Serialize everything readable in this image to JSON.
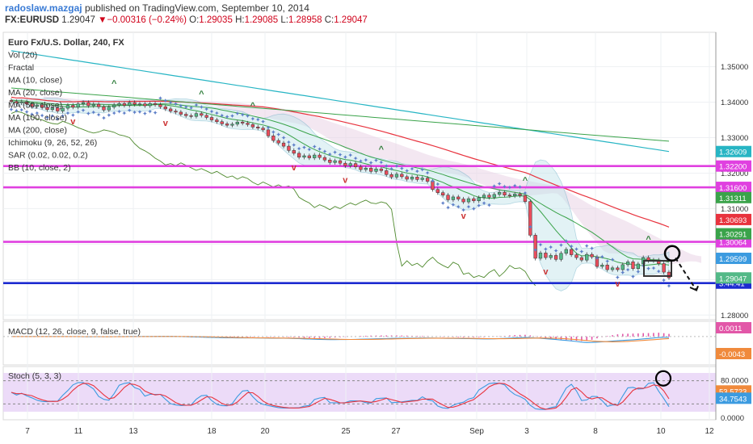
{
  "header": {
    "author": "radoslaw.mazgaj",
    "published_prefix": "published on TradingView.com,",
    "published_date": "September 10, 2014",
    "symbol": "FX:EURUSD",
    "last": "1.29047",
    "change_arrow": "▼",
    "change": "−0.00316 (−0.24%)",
    "open_label": "O:",
    "open": "1.29035",
    "high_label": "H:",
    "high": "1.29085",
    "low_label": "L:",
    "low": "1.28958",
    "close_label": "C:",
    "close": "1.29047"
  },
  "colors": {
    "up_candle": "#53b987",
    "down_candle": "#eb4d5c",
    "magenta_level": "#e040e0",
    "blue_level": "#1c2bd0",
    "sar": "#5e7fc8",
    "ma_red": "#e8333e",
    "ma_green": "#3aa34a",
    "ma_teal": "#27b5c4",
    "stoch_bg": "#e6cff5",
    "macd_line": "#3c9be0",
    "signal_line": "#f08a3c",
    "hist": "#e257a8",
    "annotation": "#000000"
  },
  "legend": [
    "Euro Fx/U.S. Dollar, 240, FX",
    "Vol (20)",
    "Fractal",
    "MA (10, close)",
    "MA (20, close)",
    "MA (50, close)",
    "MA (100, close)",
    "MA (200, close)",
    "Ichimoku (9, 26, 52, 26)",
    "SAR (0.02, 0.02, 0.2)",
    "BB (10, close, 2)"
  ],
  "chart_data": [
    {
      "type": "line",
      "symbol": "EURUSD",
      "interval": "240",
      "x_tick_labels": [
        "7",
        "11",
        "13",
        "18",
        "20",
        "25",
        "27",
        "Sep",
        "3",
        "8",
        "10",
        "12"
      ],
      "y_tick_labels": [
        "1.35000",
        "1.34000",
        "1.33000",
        "1.32000",
        "1.31000",
        "1.30000",
        "1.29000",
        "1.28000"
      ],
      "ylim": [
        1.2787,
        1.3597
      ],
      "price_path": [
        1.3402,
        1.3398,
        1.3401,
        1.3395,
        1.3388,
        1.3392,
        1.3385,
        1.3379,
        1.3384,
        1.3375,
        1.3383,
        1.3391,
        1.3386,
        1.3395,
        1.3399,
        1.339,
        1.3394,
        1.3387,
        1.3378,
        1.3386,
        1.3392,
        1.3396,
        1.3391,
        1.3399,
        1.3394,
        1.3395,
        1.339,
        1.3396,
        1.3393,
        1.3387,
        1.3381,
        1.3375,
        1.3372,
        1.3366,
        1.3362,
        1.336,
        1.3368,
        1.3363,
        1.3357,
        1.335,
        1.3345,
        1.3339,
        1.3335,
        1.3338,
        1.3344,
        1.3341,
        1.3337,
        1.333,
        1.3327,
        1.3322,
        1.3305,
        1.3292,
        1.3285,
        1.3276,
        1.3264,
        1.3256,
        1.3245,
        1.3249,
        1.3243,
        1.3251,
        1.3244,
        1.3237,
        1.323,
        1.3235,
        1.3228,
        1.3221,
        1.3227,
        1.3218,
        1.321,
        1.3214,
        1.3205,
        1.3212,
        1.3207,
        1.3196,
        1.3189,
        1.3197,
        1.319,
        1.3183,
        1.3189,
        1.3182,
        1.3186,
        1.3177,
        1.3154,
        1.3145,
        1.3138,
        1.3125,
        1.3133,
        1.3127,
        1.3119,
        1.3128,
        1.3122,
        1.3131,
        1.3138,
        1.3132,
        1.314,
        1.3146,
        1.3138,
        1.3136,
        1.3141,
        1.3137,
        1.312,
        1.3025,
        1.296,
        1.2975,
        1.2962,
        1.2968,
        1.2957,
        1.2974,
        1.2985,
        1.297,
        1.2962,
        1.2955,
        1.2971,
        1.2964,
        1.2937,
        1.2941,
        1.2928,
        1.2933,
        1.2928,
        1.2942,
        1.295,
        1.2931,
        1.2944,
        1.2962,
        1.2953,
        1.2955,
        1.2945,
        1.2921,
        1.2905
      ],
      "horizontal_levels": [
        {
          "label": "1.32200",
          "value": 1.322,
          "color": "#e040e0"
        },
        {
          "label": "1.31600",
          "value": 1.316,
          "color": "#e040e0"
        },
        {
          "label": "1.30064",
          "value": 1.30064,
          "color": "#e040e0"
        },
        {
          "label": "3:44:41",
          "value": 1.289,
          "color": "#1c2bd0"
        }
      ],
      "price_tags": [
        {
          "label": "1.32609",
          "value": 1.32609,
          "color": "#27b5c4"
        },
        {
          "label": "1.31311",
          "value": 1.31311,
          "color": "#3aa34a"
        },
        {
          "label": "1.30693",
          "value": 1.30693,
          "color": "#e8333e"
        },
        {
          "label": "1.30291",
          "value": 1.30291,
          "color": "#3aa34a"
        },
        {
          "label": "1.29599",
          "value": 1.29599,
          "color": "#3c9be0"
        },
        {
          "label": "1.29047",
          "value": 1.29047,
          "color": "#53b987"
        }
      ]
    },
    {
      "type": "bar",
      "indicator": "MACD (12, 26, close, 9, false, true)",
      "y_tick_labels": [
        "0.0011",
        "-0.0043"
      ],
      "values_summary": {
        "histogram_last": 0.0011,
        "signal_last": -0.0043
      }
    },
    {
      "type": "line",
      "indicator": "Stoch (5, 3, 3)",
      "y_tick_labels": [
        "80.0000",
        "53.5723",
        "34.7543",
        "0.0000"
      ],
      "series": [
        {
          "name": "",
          "last": 53.5723
        },
        {
          "name": "",
          "last": 34.7543
        }
      ]
    }
  ]
}
